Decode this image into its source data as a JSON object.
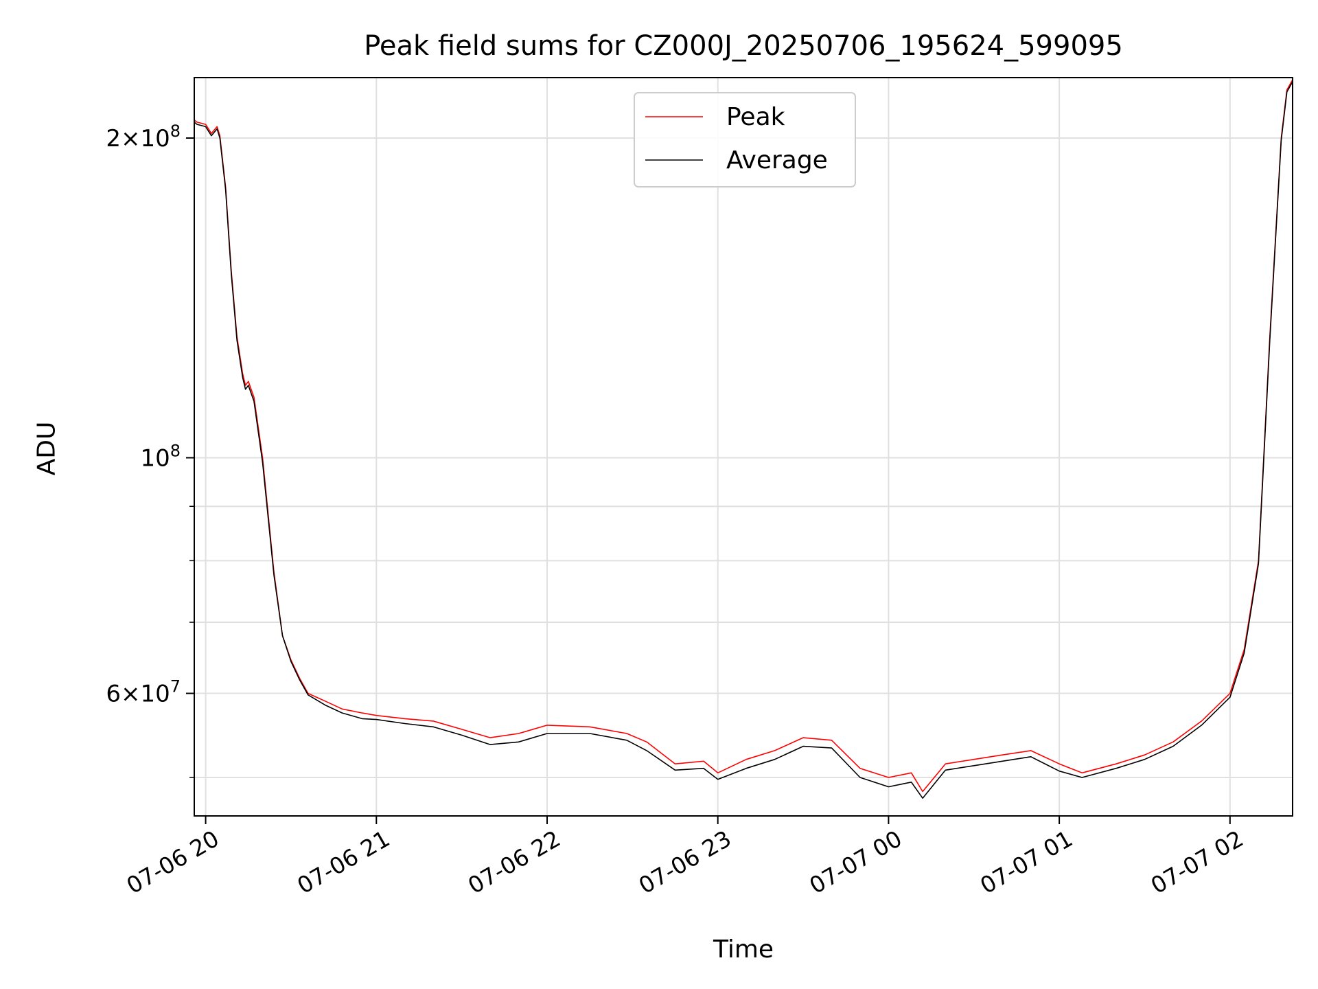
{
  "chart_data": {
    "type": "line",
    "title": "Peak field sums for CZ000J_20250706_195624_599095",
    "xlabel": "Time",
    "ylabel": "ADU",
    "yscale": "log",
    "ylim": [
      46000000,
      228000000
    ],
    "xlim": [
      "2025-07-06 19:56",
      "2025-07-07 02:22"
    ],
    "grid": true,
    "legend_position": "upper center",
    "xticks": [
      {
        "value": "2025-07-06 20:00",
        "label": "07-06 20"
      },
      {
        "value": "2025-07-06 21:00",
        "label": "07-06 21"
      },
      {
        "value": "2025-07-06 22:00",
        "label": "07-06 22"
      },
      {
        "value": "2025-07-06 23:00",
        "label": "07-06 23"
      },
      {
        "value": "2025-07-07 00:00",
        "label": "07-07 00"
      },
      {
        "value": "2025-07-07 01:00",
        "label": "07-07 01"
      },
      {
        "value": "2025-07-07 02:00",
        "label": "07-07 02"
      }
    ],
    "yticks_major": [
      {
        "value": 200000000,
        "base": "2",
        "times": "×",
        "exp_base": "10",
        "exp": "8"
      },
      {
        "value": 100000000,
        "base": "",
        "times": "",
        "exp_base": "10",
        "exp": "8"
      },
      {
        "value": 60000000,
        "base": "6",
        "times": "×",
        "exp_base": "10",
        "exp": "7"
      }
    ],
    "yticks_minor": [
      50000000,
      70000000,
      80000000,
      90000000
    ],
    "x": [
      "2025-07-06 19:56",
      "2025-07-06 19:57",
      "2025-07-06 20:00",
      "2025-07-06 20:02",
      "2025-07-06 20:04",
      "2025-07-06 20:05",
      "2025-07-06 20:07",
      "2025-07-06 20:09",
      "2025-07-06 20:11",
      "2025-07-06 20:13",
      "2025-07-06 20:14",
      "2025-07-06 20:15",
      "2025-07-06 20:17",
      "2025-07-06 20:20",
      "2025-07-06 20:24",
      "2025-07-06 20:27",
      "2025-07-06 20:30",
      "2025-07-06 20:33",
      "2025-07-06 20:36",
      "2025-07-06 20:42",
      "2025-07-06 20:48",
      "2025-07-06 20:55",
      "2025-07-06 21:00",
      "2025-07-06 21:10",
      "2025-07-06 21:20",
      "2025-07-06 21:30",
      "2025-07-06 21:40",
      "2025-07-06 21:50",
      "2025-07-06 22:00",
      "2025-07-06 22:15",
      "2025-07-06 22:28",
      "2025-07-06 22:35",
      "2025-07-06 22:45",
      "2025-07-06 22:55",
      "2025-07-06 23:00",
      "2025-07-06 23:10",
      "2025-07-06 23:20",
      "2025-07-06 23:30",
      "2025-07-06 23:40",
      "2025-07-06 23:50",
      "2025-07-07 00:00",
      "2025-07-07 00:08",
      "2025-07-07 00:12",
      "2025-07-07 00:20",
      "2025-07-07 00:30",
      "2025-07-07 00:40",
      "2025-07-07 00:50",
      "2025-07-07 01:00",
      "2025-07-07 01:08",
      "2025-07-07 01:20",
      "2025-07-07 01:30",
      "2025-07-07 01:40",
      "2025-07-07 01:50",
      "2025-07-07 02:00",
      "2025-07-07 02:05",
      "2025-07-07 02:10",
      "2025-07-07 02:14",
      "2025-07-07 02:18",
      "2025-07-07 02:20",
      "2025-07-07 02:22"
    ],
    "series": [
      {
        "name": "Peak",
        "color": "#ff0000",
        "values": [
          208000000,
          207000000,
          206000000,
          202000000,
          205000000,
          201000000,
          180000000,
          150000000,
          130000000,
          120000000,
          117000000,
          118000000,
          114000000,
          100000000,
          78000000,
          68000000,
          64500000,
          62000000,
          60000000,
          59000000,
          58000000,
          57500000,
          57200000,
          56800000,
          56500000,
          55500000,
          54500000,
          55000000,
          56000000,
          55800000,
          55000000,
          54000000,
          51500000,
          51800000,
          50500000,
          52000000,
          53000000,
          54500000,
          54200000,
          51000000,
          50000000,
          50500000,
          48500000,
          51500000,
          52000000,
          52500000,
          53000000,
          51500000,
          50500000,
          51500000,
          52500000,
          54000000,
          56500000,
          60000000,
          66000000,
          80000000,
          130000000,
          200000000,
          222000000,
          227000000
        ]
      },
      {
        "name": "Average",
        "color": "#000000",
        "values": [
          207000000,
          206000000,
          205000000,
          201000000,
          204000000,
          200000000,
          179000000,
          149000000,
          129000000,
          119000000,
          116000000,
          117000000,
          113000000,
          99000000,
          77500000,
          68000000,
          64300000,
          61800000,
          59800000,
          58500000,
          57500000,
          56800000,
          56700000,
          56200000,
          55800000,
          54800000,
          53700000,
          54000000,
          55000000,
          55000000,
          54200000,
          53000000,
          50800000,
          51000000,
          49800000,
          51000000,
          52000000,
          53500000,
          53300000,
          50000000,
          49000000,
          49500000,
          47800000,
          50800000,
          51300000,
          51800000,
          52300000,
          50700000,
          50000000,
          51000000,
          52000000,
          53500000,
          56000000,
          59500000,
          65500000,
          79500000,
          129000000,
          199000000,
          221000000,
          226000000
        ]
      }
    ]
  }
}
